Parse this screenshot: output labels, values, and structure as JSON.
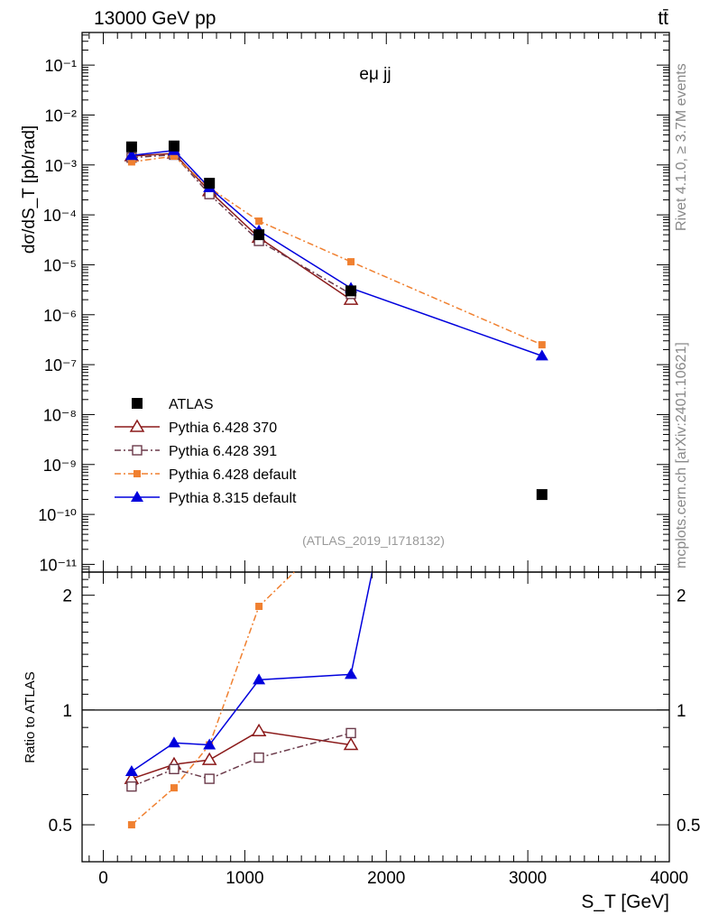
{
  "header": {
    "left_label": "13000 GeV pp",
    "right_label": "tt̄",
    "side_label_top": "Rivet 4.1.0, ≥ 3.7M events",
    "side_label_bottom": "mcplots.cern.ch [arXiv:2401.10621]"
  },
  "chart_data": [
    {
      "type": "line",
      "panel": "main",
      "title": "eμ jj",
      "analysis_tag": "(ATLAS_2019_I1718132)",
      "xlabel": "S_T [GeV]",
      "ylabel": "dσ/dS_T [pb/rad]",
      "yscale": "log",
      "xlim": [
        -150,
        4000
      ],
      "ylim": [
        7e-12,
        0.45
      ],
      "x_ticks": [
        0,
        1000,
        2000,
        3000,
        4000
      ],
      "y_ticks": [
        {
          "exp": -1,
          "label": "10⁻¹"
        },
        {
          "exp": -2,
          "label": "10⁻²"
        },
        {
          "exp": -3,
          "label": "10⁻³"
        },
        {
          "exp": -4,
          "label": "10⁻⁴"
        },
        {
          "exp": -5,
          "label": "10⁻⁵"
        },
        {
          "exp": -6,
          "label": "10⁻⁶"
        },
        {
          "exp": -7,
          "label": "10⁻⁷"
        },
        {
          "exp": -8,
          "label": "10⁻⁸"
        },
        {
          "exp": -9,
          "label": "10⁻⁹"
        },
        {
          "exp": -10,
          "label": "10⁻¹⁰"
        },
        {
          "exp": -11,
          "label": "10⁻¹¹"
        }
      ],
      "legend_position": "lower-left",
      "series": [
        {
          "name": "ATLAS",
          "color": "#000000",
          "marker": "filled-square",
          "line": "none",
          "x": [
            200,
            500,
            750,
            1100,
            1750,
            3100
          ],
          "y": [
            0.0023,
            0.0024,
            0.00043,
            4e-05,
            3e-06,
            2.5e-10
          ]
        },
        {
          "name": "Pythia 6.428 370",
          "color": "#8b1a1a",
          "marker": "open-triangle",
          "line": "solid",
          "x": [
            200,
            500,
            750,
            1100,
            1750
          ],
          "y": [
            0.0015,
            0.0017,
            0.0003,
            3.5e-05,
            2e-06
          ]
        },
        {
          "name": "Pythia 6.428 391",
          "color": "#6b3a4a",
          "marker": "open-square",
          "line": "dashdot",
          "x": [
            200,
            500,
            750,
            1100,
            1750
          ],
          "y": [
            0.0014,
            0.0016,
            0.00026,
            3e-05,
            2.6e-06
          ]
        },
        {
          "name": "Pythia 6.428 default",
          "color": "#f08030",
          "marker": "filled-square-small",
          "line": "dashdot",
          "x": [
            200,
            500,
            750,
            1100,
            1750,
            3100
          ],
          "y": [
            0.00115,
            0.0015,
            0.00035,
            7.5e-05,
            1.15e-05,
            2.5e-07
          ]
        },
        {
          "name": "Pythia 8.315 default",
          "color": "#0000dd",
          "marker": "filled-triangle",
          "line": "solid",
          "x": [
            200,
            500,
            750,
            1100,
            1750,
            3100
          ],
          "y": [
            0.00155,
            0.00195,
            0.00035,
            4.8e-05,
            3.4e-06,
            1.5e-07
          ]
        }
      ]
    },
    {
      "type": "line",
      "panel": "ratio",
      "xlabel": "S_T [GeV]",
      "ylabel": "Ratio to ATLAS",
      "yscale": "log",
      "xlim": [
        -150,
        4000
      ],
      "ylim": [
        0.4,
        2.3
      ],
      "y_ticks": [
        {
          "value": 0.5,
          "label": "0.5"
        },
        {
          "value": 1,
          "label": "1"
        },
        {
          "value": 2,
          "label": "2"
        }
      ],
      "reference_line": 1,
      "series": [
        {
          "name": "Pythia 6.428 370",
          "x": [
            200,
            500,
            750,
            1100,
            1750
          ],
          "y": [
            0.66,
            0.72,
            0.74,
            0.88,
            0.81
          ]
        },
        {
          "name": "Pythia 6.428 391",
          "x": [
            200,
            500,
            750,
            1100,
            1750
          ],
          "y": [
            0.63,
            0.7,
            0.66,
            0.75,
            0.87
          ]
        },
        {
          "name": "Pythia 6.428 default",
          "x": [
            200,
            500,
            750,
            1100,
            1350
          ],
          "y": [
            0.5,
            0.625,
            0.81,
            1.87,
            2.3
          ]
        },
        {
          "name": "Pythia 8.315 default",
          "x": [
            200,
            500,
            750,
            1100,
            1750,
            1900
          ],
          "y": [
            0.69,
            0.82,
            0.81,
            1.2,
            1.24,
            2.3
          ]
        }
      ]
    }
  ]
}
